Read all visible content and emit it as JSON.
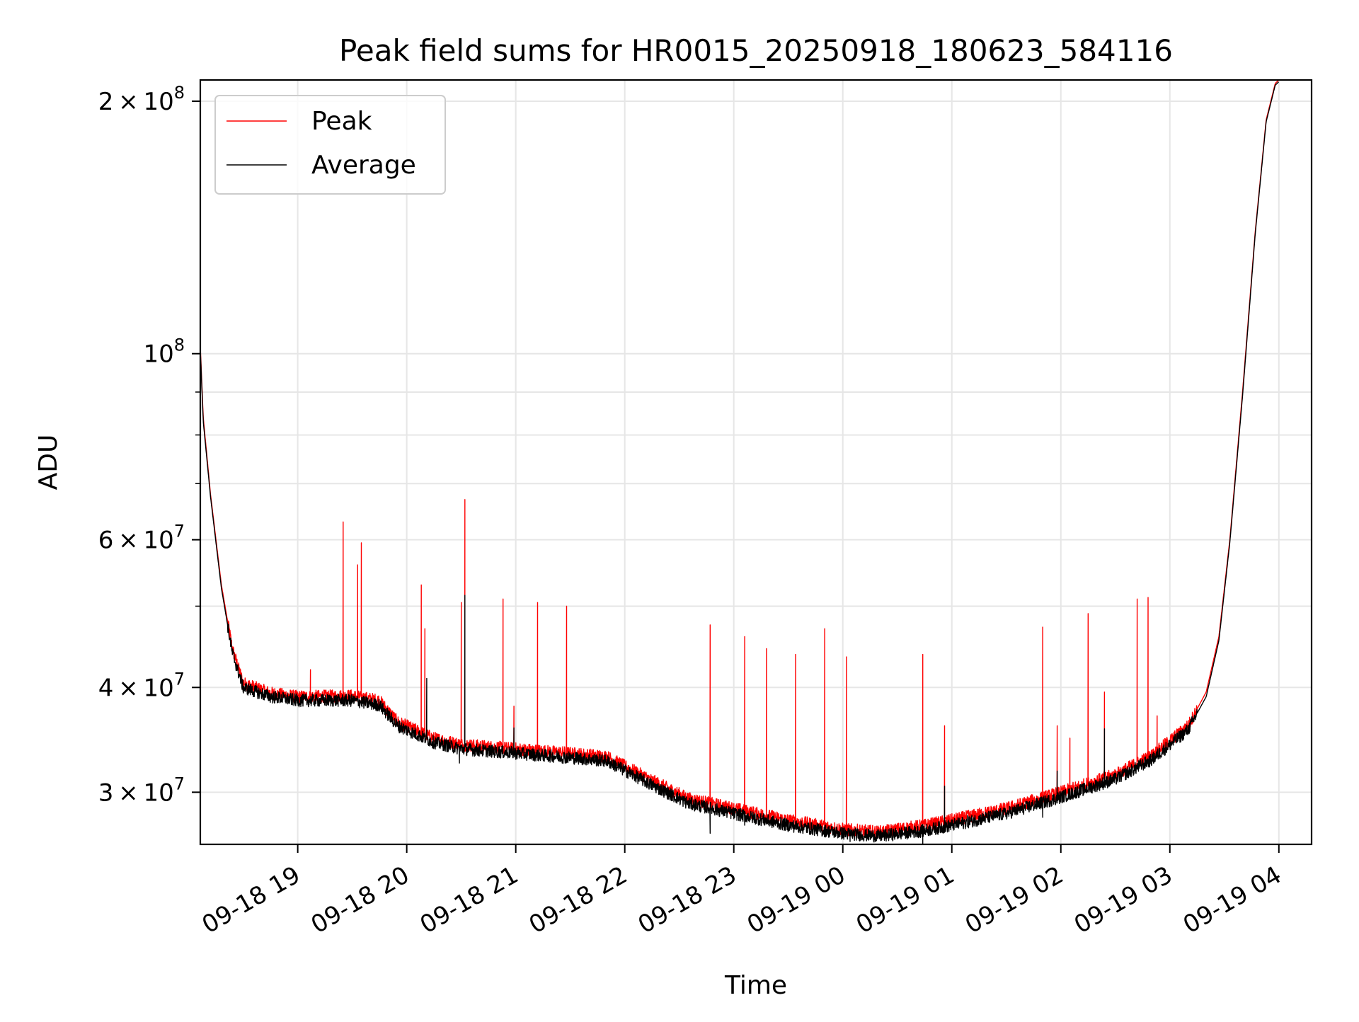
{
  "chart_data": {
    "type": "line",
    "title": "Peak field sums for HR0015_20250918_180623_584116",
    "xlabel": "Time",
    "ylabel": "ADU",
    "yscale": "log",
    "xlim": [
      "2025-09-18T18:06:23",
      "2025-09-19T04:18:00"
    ],
    "ylim": [
      26000000,
      212000000
    ],
    "grid": true,
    "legend_position": "upper-left",
    "x_ticks": [
      {
        "value": "2025-09-18T19:00",
        "label": "09-18 19"
      },
      {
        "value": "2025-09-18T20:00",
        "label": "09-18 20"
      },
      {
        "value": "2025-09-18T21:00",
        "label": "09-18 21"
      },
      {
        "value": "2025-09-18T22:00",
        "label": "09-18 22"
      },
      {
        "value": "2025-09-18T23:00",
        "label": "09-18 23"
      },
      {
        "value": "2025-09-19T00:00",
        "label": "09-19 00"
      },
      {
        "value": "2025-09-19T01:00",
        "label": "09-19 01"
      },
      {
        "value": "2025-09-19T02:00",
        "label": "09-19 02"
      },
      {
        "value": "2025-09-19T03:00",
        "label": "09-19 03"
      },
      {
        "value": "2025-09-19T04:00",
        "label": "09-19 04"
      }
    ],
    "y_ticks": [
      {
        "value": 30000000,
        "mantissa": "3",
        "exp": "7"
      },
      {
        "value": 40000000,
        "mantissa": "4",
        "exp": "7"
      },
      {
        "value": 60000000,
        "mantissa": "6",
        "exp": "7"
      },
      {
        "value": 100000000,
        "mantissa": "",
        "exp": "8"
      },
      {
        "value": 200000000,
        "mantissa": "2",
        "exp": "8"
      }
    ],
    "y_minor_ticks": [
      50000000,
      70000000,
      80000000,
      90000000
    ],
    "series": [
      {
        "name": "Peak",
        "color": "#ff0000",
        "baseline": [
          [
            "2025-09-18T18:06:23",
            102000000
          ],
          [
            "2025-09-18T18:08",
            84000000
          ],
          [
            "2025-09-18T18:12",
            68000000
          ],
          [
            "2025-09-18T18:18",
            53000000
          ],
          [
            "2025-09-18T18:24",
            44500000
          ],
          [
            "2025-09-18T18:30",
            40500000
          ],
          [
            "2025-09-18T18:45",
            39400000
          ],
          [
            "2025-09-18T19:00",
            39000000
          ],
          [
            "2025-09-18T19:30",
            39100000
          ],
          [
            "2025-09-18T19:45",
            38600000
          ],
          [
            "2025-09-18T19:55",
            36400000
          ],
          [
            "2025-09-18T20:15",
            34800000
          ],
          [
            "2025-09-18T20:30",
            34200000
          ],
          [
            "2025-09-18T21:00",
            33800000
          ],
          [
            "2025-09-18T21:30",
            33400000
          ],
          [
            "2025-09-18T21:50",
            33100000
          ],
          [
            "2025-09-18T22:15",
            31000000
          ],
          [
            "2025-09-18T22:35",
            29500000
          ],
          [
            "2025-09-18T23:00",
            28700000
          ],
          [
            "2025-09-18T23:30",
            27800000
          ],
          [
            "2025-09-19T00:00",
            27100000
          ],
          [
            "2025-09-19T00:20",
            26900000
          ],
          [
            "2025-09-19T00:45",
            27400000
          ],
          [
            "2025-09-19T01:00",
            27800000
          ],
          [
            "2025-09-19T01:30",
            28700000
          ],
          [
            "2025-09-19T02:00",
            30000000
          ],
          [
            "2025-09-19T02:30",
            31500000
          ],
          [
            "2025-09-19T02:50",
            33200000
          ],
          [
            "2025-09-19T03:10",
            36000000
          ],
          [
            "2025-09-19T03:20",
            39500000
          ],
          [
            "2025-09-19T03:27",
            46000000
          ],
          [
            "2025-09-19T03:33",
            60000000
          ],
          [
            "2025-09-19T03:40",
            90000000
          ],
          [
            "2025-09-19T03:47",
            140000000
          ],
          [
            "2025-09-19T03:53",
            190000000
          ],
          [
            "2025-09-19T03:58",
            210000000
          ],
          [
            "2025-09-19T04:00",
            212000000
          ]
        ],
        "spikes": [
          [
            "2025-09-18T19:07",
            42000000
          ],
          [
            "2025-09-18T19:25",
            63000000
          ],
          [
            "2025-09-18T19:33",
            56000000
          ],
          [
            "2025-09-18T19:35",
            59500000
          ],
          [
            "2025-09-18T20:08",
            53000000
          ],
          [
            "2025-09-18T20:10",
            47000000
          ],
          [
            "2025-09-18T20:30",
            50500000
          ],
          [
            "2025-09-18T20:32",
            67000000
          ],
          [
            "2025-09-18T20:53",
            51000000
          ],
          [
            "2025-09-18T20:59",
            38000000
          ],
          [
            "2025-09-18T21:12",
            50500000
          ],
          [
            "2025-09-18T21:28",
            50000000
          ],
          [
            "2025-09-18T22:47",
            47500000
          ],
          [
            "2025-09-18T23:06",
            46000000
          ],
          [
            "2025-09-18T23:18",
            44500000
          ],
          [
            "2025-09-18T23:34",
            43800000
          ],
          [
            "2025-09-18T23:50",
            47000000
          ],
          [
            "2025-09-19T00:02",
            43500000
          ],
          [
            "2025-09-19T00:44",
            43800000
          ],
          [
            "2025-09-19T00:56",
            36000000
          ],
          [
            "2025-09-19T01:50",
            47200000
          ],
          [
            "2025-09-19T01:58",
            36000000
          ],
          [
            "2025-09-19T02:05",
            34800000
          ],
          [
            "2025-09-19T02:15",
            49000000
          ],
          [
            "2025-09-19T02:24",
            39500000
          ],
          [
            "2025-09-19T02:42",
            51000000
          ],
          [
            "2025-09-19T02:48",
            51200000
          ],
          [
            "2025-09-19T02:53",
            37000000
          ]
        ]
      },
      {
        "name": "Average",
        "color": "#000000",
        "baseline": [
          [
            "2025-09-18T18:06:23",
            101000000
          ],
          [
            "2025-09-18T18:08",
            83000000
          ],
          [
            "2025-09-18T18:12",
            67500000
          ],
          [
            "2025-09-18T18:18",
            52500000
          ],
          [
            "2025-09-18T18:24",
            44000000
          ],
          [
            "2025-09-18T18:30",
            40000000
          ],
          [
            "2025-09-18T18:45",
            39000000
          ],
          [
            "2025-09-18T19:00",
            38600000
          ],
          [
            "2025-09-18T19:30",
            38600000
          ],
          [
            "2025-09-18T19:45",
            38100000
          ],
          [
            "2025-09-18T19:55",
            36000000
          ],
          [
            "2025-09-18T20:15",
            34400000
          ],
          [
            "2025-09-18T20:30",
            33800000
          ],
          [
            "2025-09-18T21:00",
            33400000
          ],
          [
            "2025-09-18T21:30",
            33000000
          ],
          [
            "2025-09-18T21:50",
            32700000
          ],
          [
            "2025-09-18T22:15",
            30600000
          ],
          [
            "2025-09-18T22:35",
            29100000
          ],
          [
            "2025-09-18T23:00",
            28300000
          ],
          [
            "2025-09-18T23:30",
            27400000
          ],
          [
            "2025-09-19T00:00",
            26800000
          ],
          [
            "2025-09-19T00:20",
            26600000
          ],
          [
            "2025-09-19T00:45",
            27000000
          ],
          [
            "2025-09-19T01:00",
            27400000
          ],
          [
            "2025-09-19T01:30",
            28300000
          ],
          [
            "2025-09-19T02:00",
            29600000
          ],
          [
            "2025-09-19T02:30",
            31100000
          ],
          [
            "2025-09-19T02:50",
            32800000
          ],
          [
            "2025-09-19T03:10",
            35600000
          ],
          [
            "2025-09-19T03:20",
            39000000
          ],
          [
            "2025-09-19T03:27",
            45500000
          ],
          [
            "2025-09-19T03:33",
            59500000
          ],
          [
            "2025-09-19T03:40",
            89000000
          ],
          [
            "2025-09-19T03:47",
            139000000
          ],
          [
            "2025-09-19T03:53",
            189000000
          ],
          [
            "2025-09-19T03:58",
            209000000
          ],
          [
            "2025-09-19T04:00",
            211000000
          ]
        ],
        "spikes": [
          [
            "2025-09-18T20:11",
            41000000
          ],
          [
            "2025-09-18T20:32",
            51500000
          ],
          [
            "2025-09-18T20:59",
            35800000
          ],
          [
            "2025-09-19T00:56",
            30500000
          ],
          [
            "2025-09-19T01:58",
            31800000
          ],
          [
            "2025-09-19T02:24",
            35700000
          ]
        ],
        "dips": [
          [
            "2025-09-18T20:29",
            32500000
          ],
          [
            "2025-09-18T22:47",
            26800000
          ],
          [
            "2025-09-18T23:06",
            27400000
          ],
          [
            "2025-09-19T00:04",
            26200000
          ],
          [
            "2025-09-19T00:44",
            26000000
          ],
          [
            "2025-09-19T01:50",
            28000000
          ]
        ]
      }
    ]
  }
}
